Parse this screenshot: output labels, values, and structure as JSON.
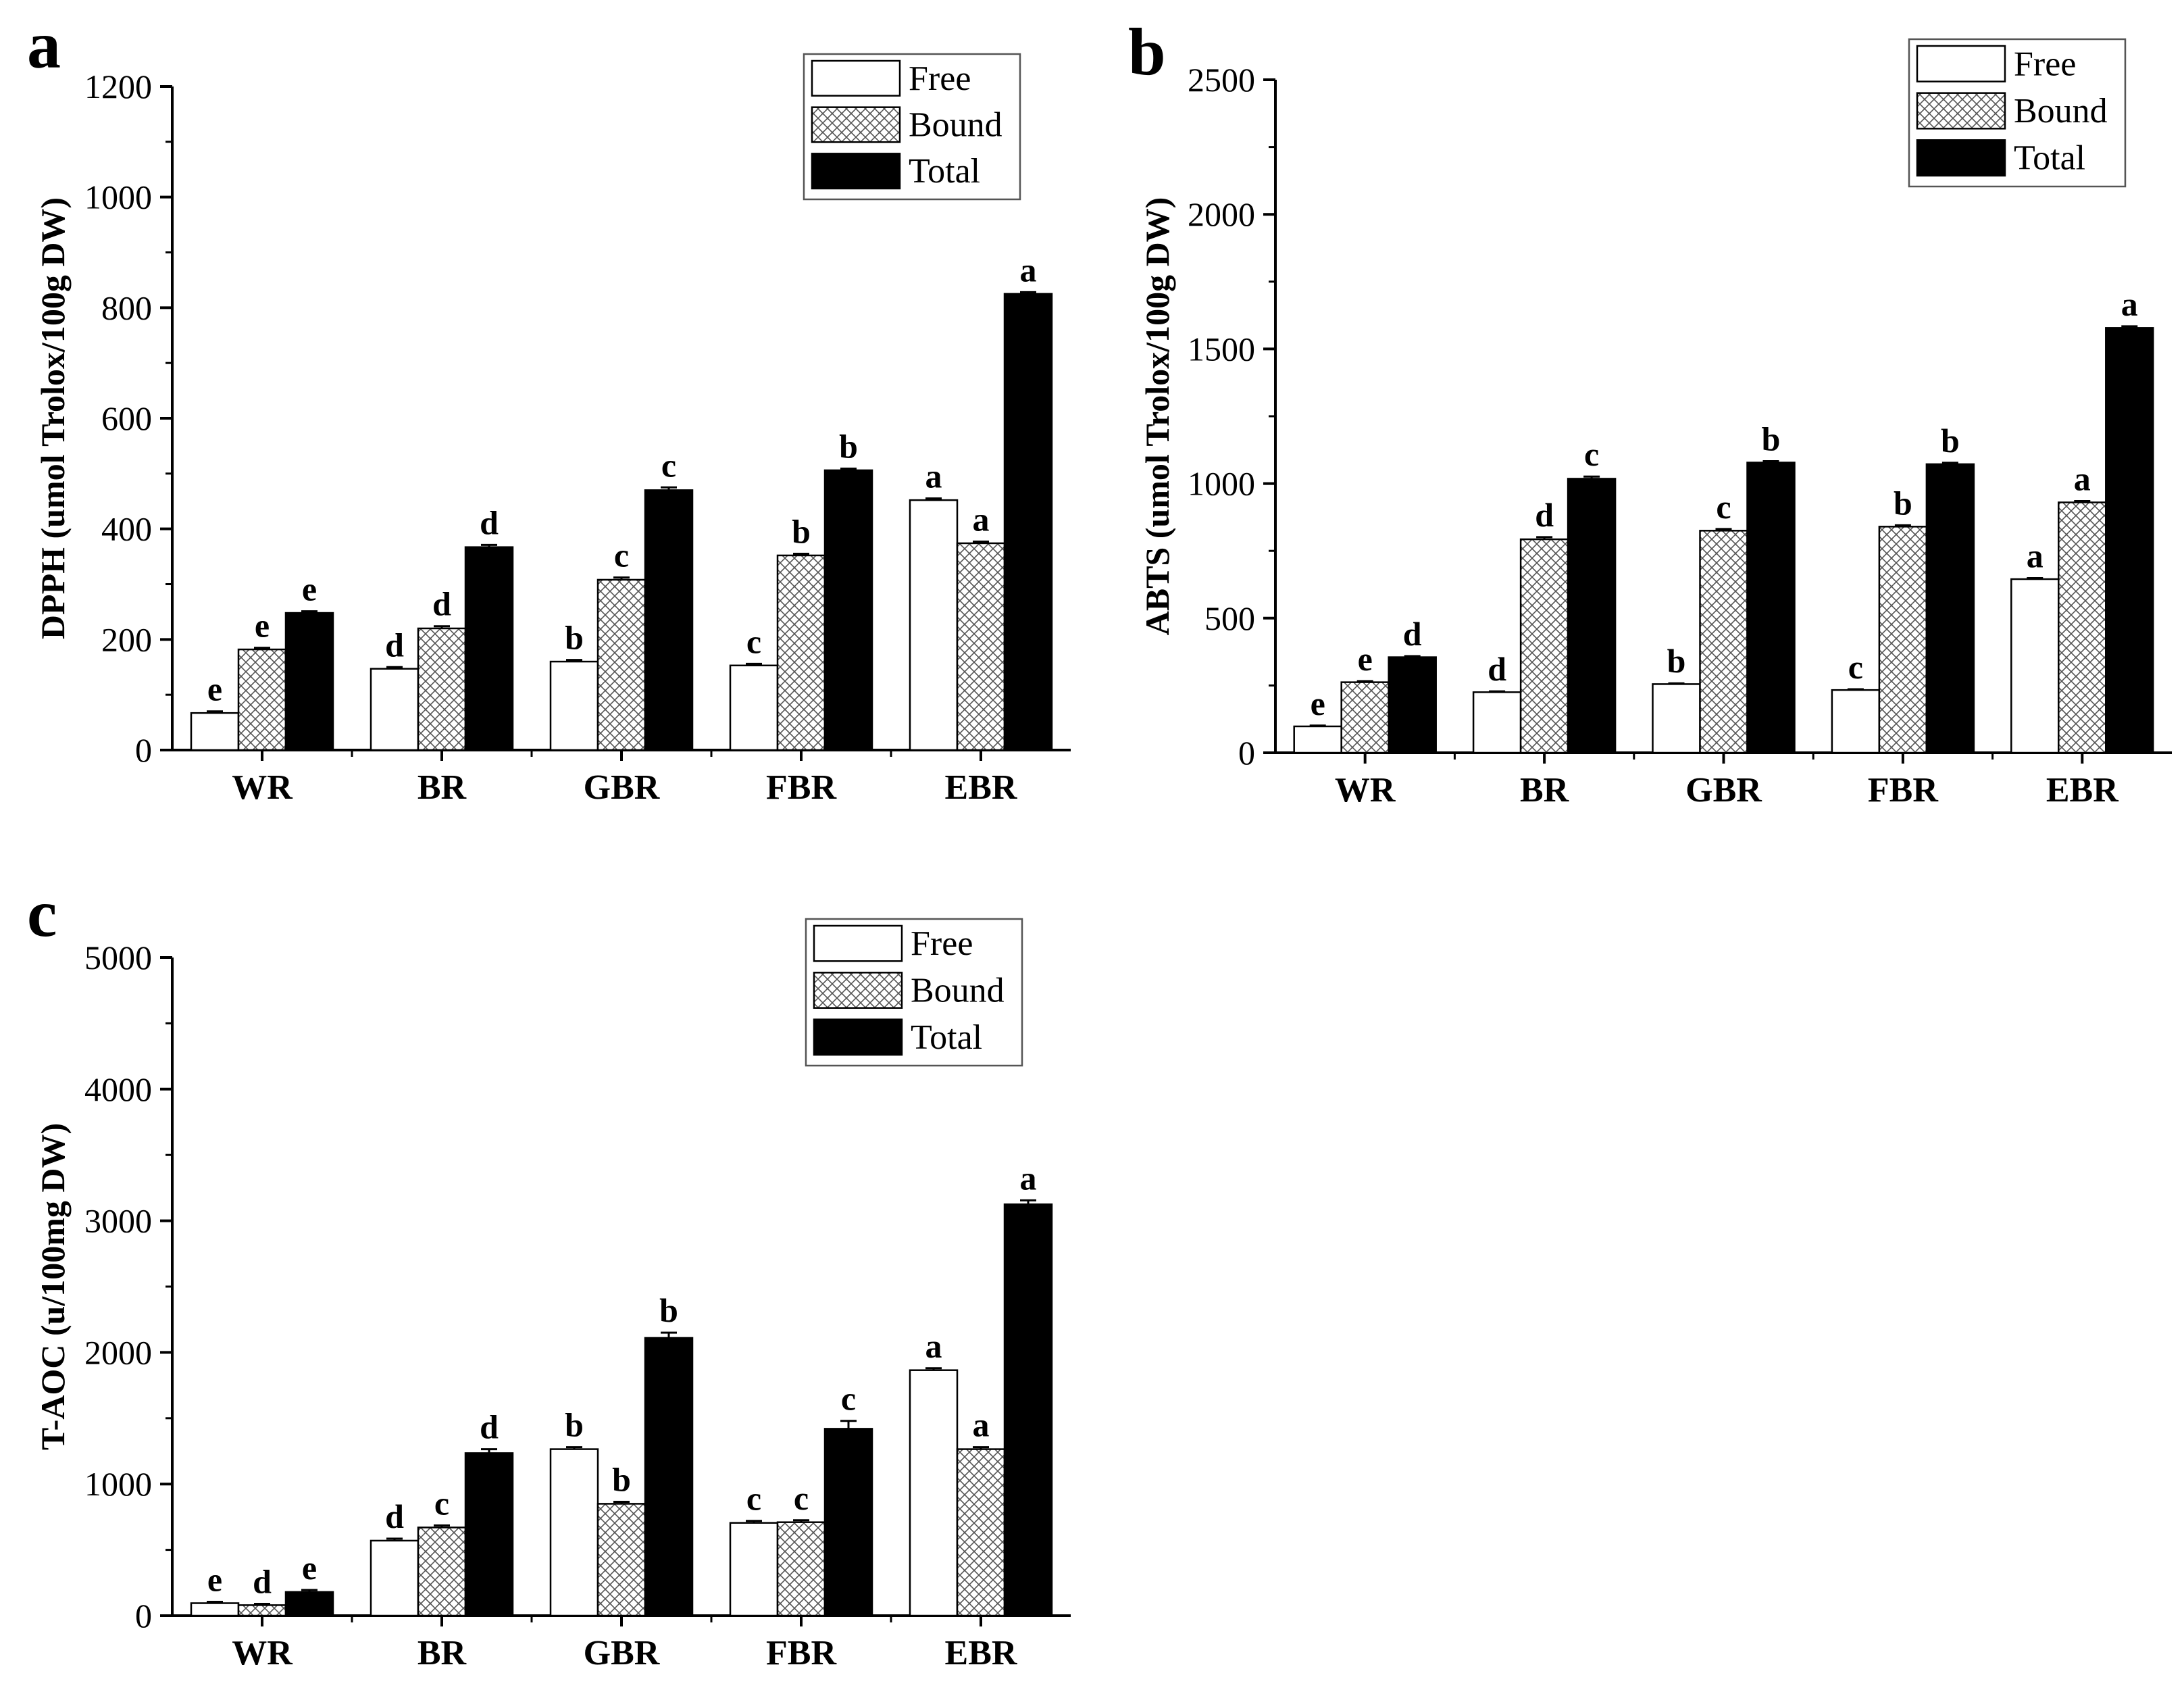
{
  "chart_data": [
    {
      "panel": "a",
      "type": "bar",
      "ylabel": "DPPH (umol Trolox/100g DW)",
      "ylim": [
        0,
        1200
      ],
      "yticks": [
        0,
        200,
        400,
        600,
        800,
        1000,
        1200
      ],
      "categories": [
        "WR",
        "BR",
        "GBR",
        "FBR",
        "EBR"
      ],
      "legend": {
        "placement": "top-right",
        "entries": [
          "Free",
          "Bound",
          "Total"
        ]
      },
      "series": [
        {
          "name": "Free",
          "pattern": "white",
          "values": [
            67,
            147,
            160,
            153,
            452
          ],
          "errors": [
            3,
            3,
            3,
            3,
            3
          ],
          "letters": [
            "e",
            "d",
            "b",
            "c",
            "a"
          ]
        },
        {
          "name": "Bound",
          "pattern": "crosshatch",
          "values": [
            182,
            220,
            308,
            352,
            374
          ],
          "errors": [
            3,
            4,
            4,
            3,
            3
          ],
          "letters": [
            "e",
            "d",
            "c",
            "b",
            "a"
          ]
        },
        {
          "name": "Total",
          "pattern": "black",
          "values": [
            248,
            367,
            470,
            506,
            825
          ],
          "errors": [
            3,
            4,
            5,
            3,
            3
          ],
          "letters": [
            "e",
            "d",
            "c",
            "b",
            "a"
          ]
        }
      ]
    },
    {
      "panel": "b",
      "type": "bar",
      "ylabel": "ABTS (umol Trolox/100g DW)",
      "ylim": [
        0,
        2500
      ],
      "yticks": [
        0,
        500,
        1000,
        1500,
        2000,
        2500
      ],
      "categories": [
        "WR",
        "BR",
        "GBR",
        "FBR",
        "EBR"
      ],
      "legend": {
        "placement": "top-right",
        "entries": [
          "Free",
          "Bound",
          "Total"
        ]
      },
      "series": [
        {
          "name": "Free",
          "pattern": "white",
          "values": [
            98,
            225,
            255,
            233,
            645
          ],
          "errors": [
            3,
            3,
            3,
            3,
            4
          ],
          "letters": [
            "e",
            "d",
            "b",
            "c",
            "a"
          ]
        },
        {
          "name": "Bound",
          "pattern": "crosshatch",
          "values": [
            262,
            793,
            825,
            840,
            930
          ],
          "errors": [
            4,
            8,
            6,
            5,
            5
          ],
          "letters": [
            "e",
            "d",
            "c",
            "b",
            "a"
          ]
        },
        {
          "name": "Total",
          "pattern": "black",
          "values": [
            355,
            1018,
            1078,
            1072,
            1578
          ],
          "errors": [
            4,
            8,
            5,
            5,
            6
          ],
          "letters": [
            "d",
            "c",
            "b",
            "b",
            "a"
          ]
        }
      ]
    },
    {
      "panel": "c",
      "type": "bar",
      "ylabel": "T-AOC (u/100mg DW)",
      "ylim": [
        0,
        5000
      ],
      "yticks": [
        0,
        1000,
        2000,
        3000,
        4000,
        5000
      ],
      "categories": [
        "WR",
        "BR",
        "GBR",
        "FBR",
        "EBR"
      ],
      "legend": {
        "placement": "top-right",
        "entries": [
          "Free",
          "Bound",
          "Total"
        ]
      },
      "series": [
        {
          "name": "Free",
          "pattern": "white",
          "values": [
            95,
            570,
            1265,
            705,
            1865
          ],
          "errors": [
            10,
            15,
            15,
            15,
            15
          ],
          "letters": [
            "e",
            "d",
            "b",
            "c",
            "a"
          ]
        },
        {
          "name": "Bound",
          "pattern": "crosshatch",
          "values": [
            80,
            670,
            850,
            710,
            1265
          ],
          "errors": [
            10,
            15,
            15,
            15,
            15
          ],
          "letters": [
            "d",
            "c",
            "b",
            "c",
            "a"
          ]
        },
        {
          "name": "Total",
          "pattern": "black",
          "values": [
            180,
            1235,
            2110,
            1420,
            3125
          ],
          "errors": [
            15,
            30,
            40,
            60,
            30
          ],
          "letters": [
            "e",
            "d",
            "b",
            "c",
            "a"
          ]
        }
      ]
    }
  ]
}
